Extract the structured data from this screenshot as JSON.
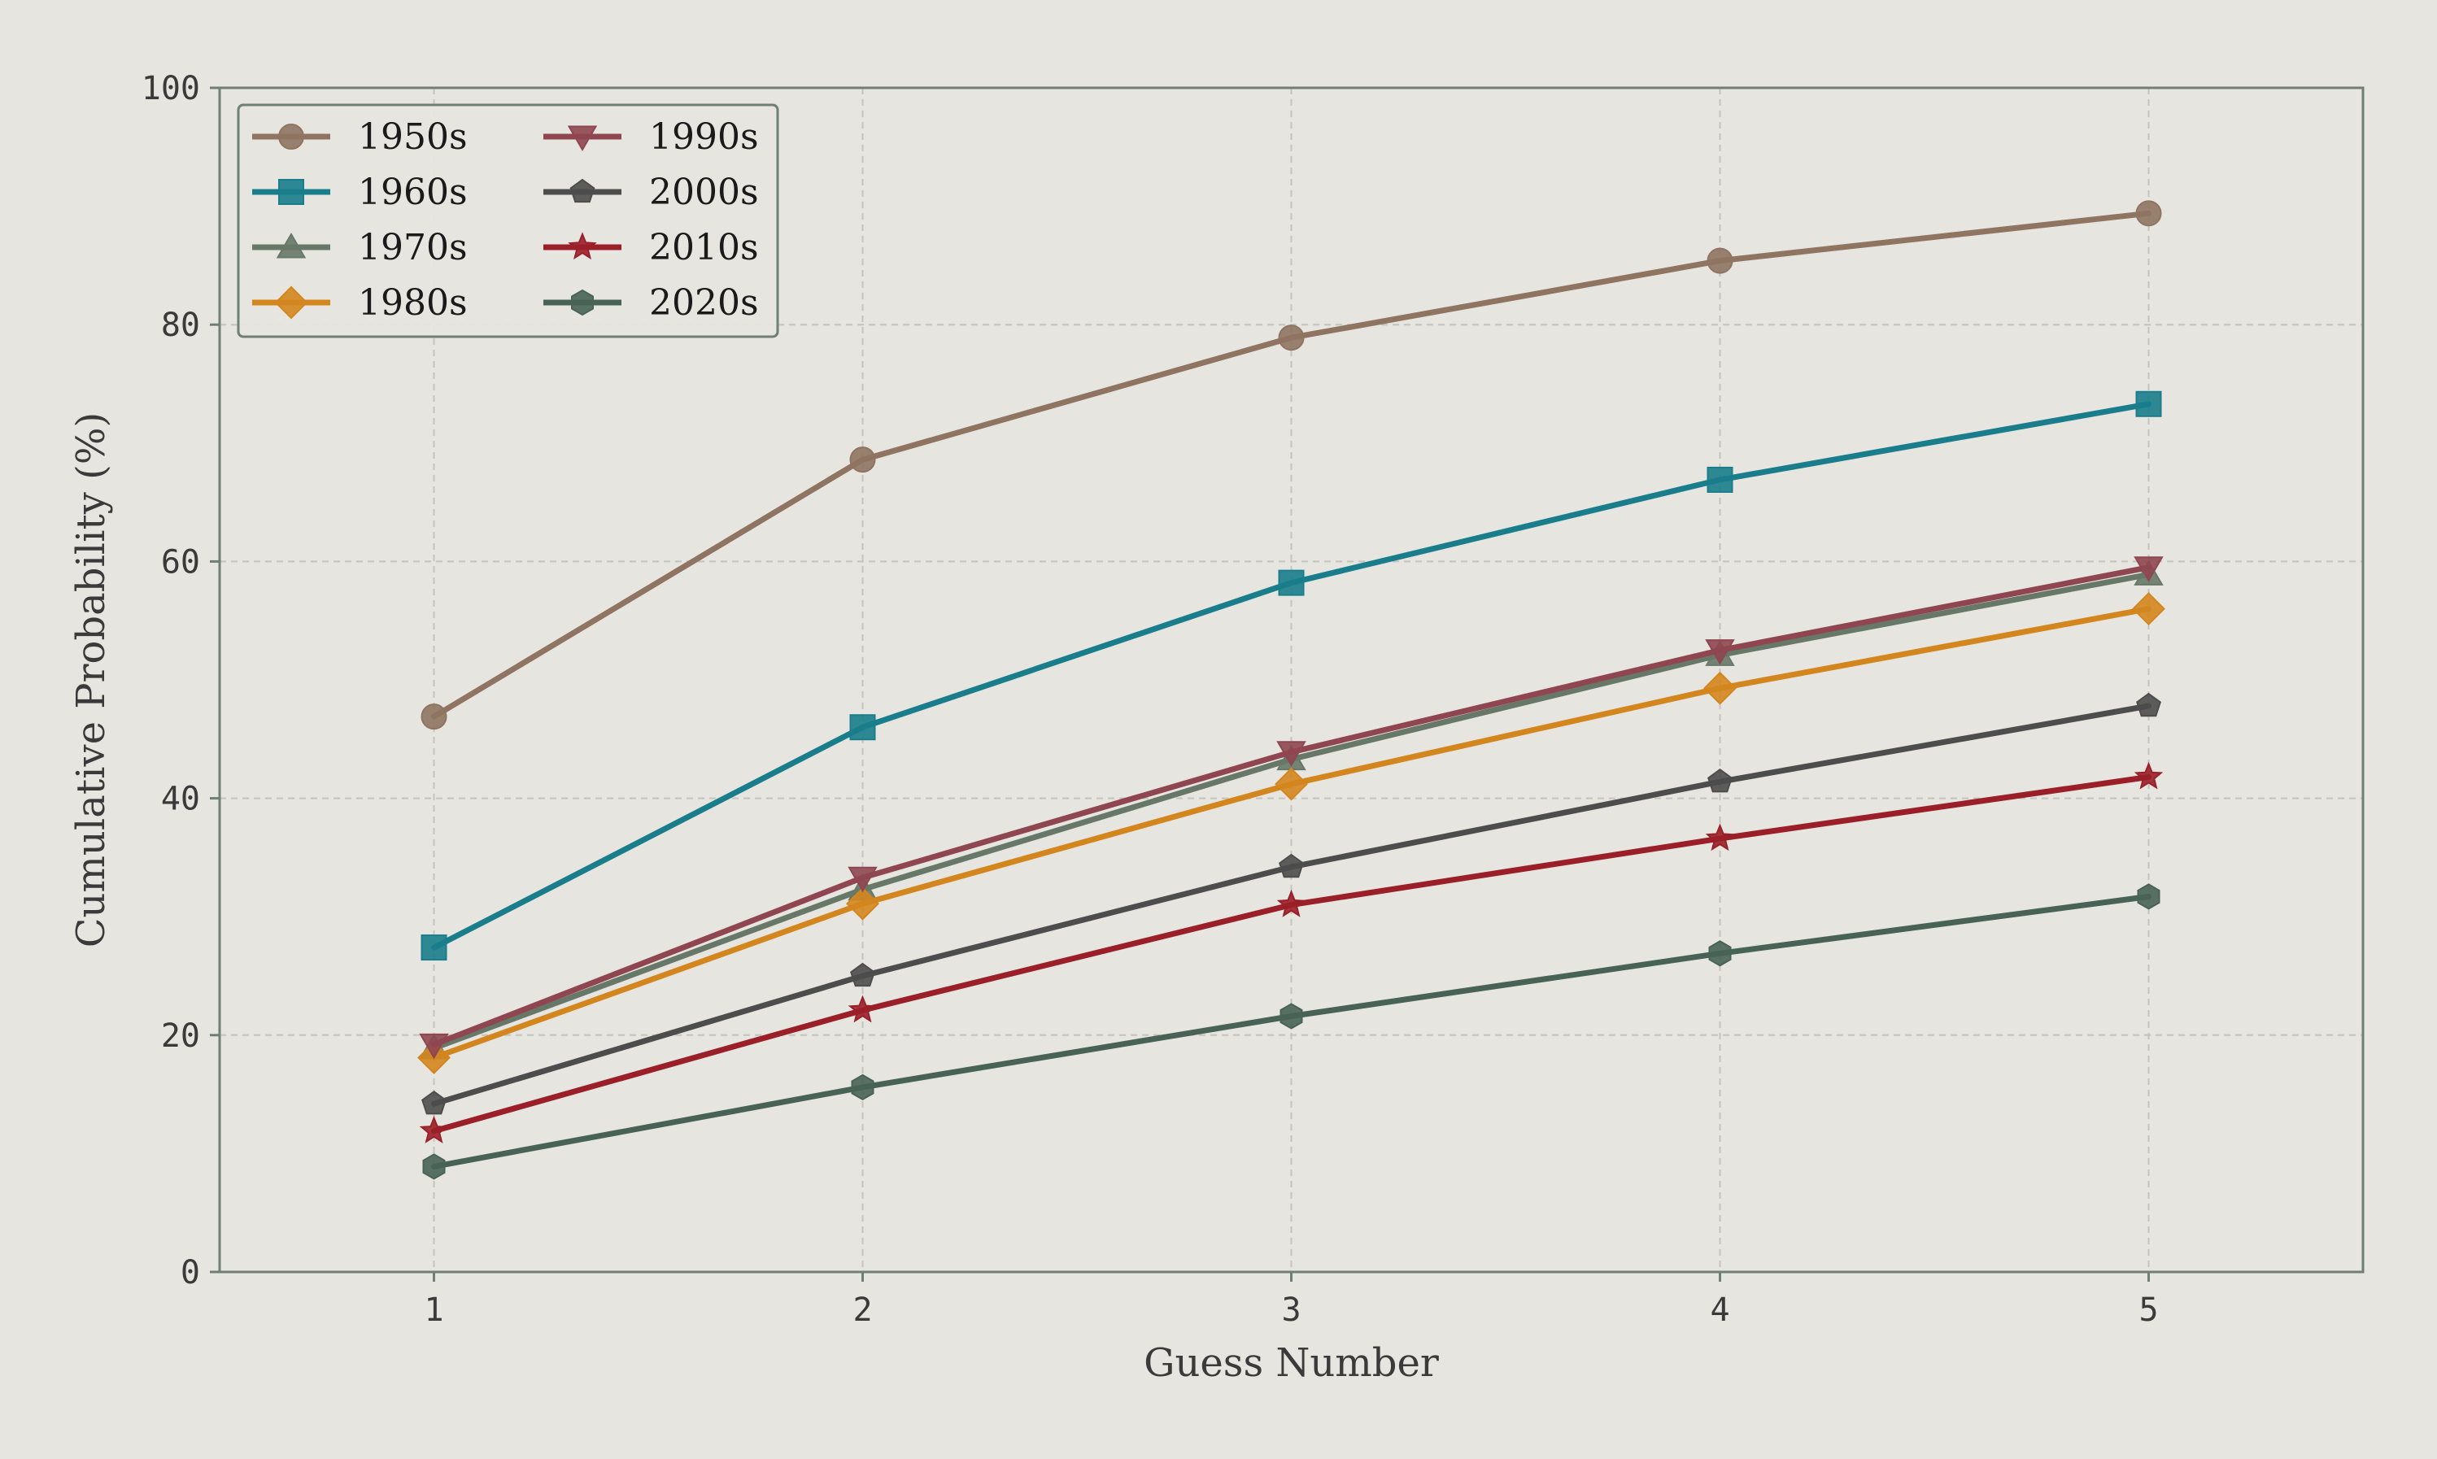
{
  "chart_data": {
    "type": "line",
    "title": "",
    "xlabel": "Guess Number",
    "ylabel": "Cumulative Probability (%)",
    "x": [
      1,
      2,
      3,
      4,
      5
    ],
    "xlim": [
      0.5,
      5.5
    ],
    "ylim": [
      0,
      100
    ],
    "xticks": [
      "1",
      "2",
      "3",
      "4",
      "5"
    ],
    "yticks": [
      "0",
      "20",
      "40",
      "60",
      "80",
      "100"
    ],
    "grid": true,
    "legend_position": "top-left",
    "series": [
      {
        "name": "1950s",
        "color": "#8f7462",
        "marker": "circle",
        "values": [
          46.9,
          68.6,
          78.9,
          85.4,
          89.4
        ]
      },
      {
        "name": "1960s",
        "color": "#1a7d8c",
        "marker": "square",
        "values": [
          27.4,
          46.0,
          58.2,
          66.9,
          73.3
        ]
      },
      {
        "name": "1970s",
        "color": "#687868",
        "marker": "triangle-up",
        "values": [
          18.9,
          32.3,
          43.3,
          52.1,
          58.9
        ]
      },
      {
        "name": "1980s",
        "color": "#d4861e",
        "marker": "diamond",
        "values": [
          18.1,
          31.1,
          41.2,
          49.3,
          56.0
        ]
      },
      {
        "name": "1990s",
        "color": "#8f4650",
        "marker": "triangle-down",
        "values": [
          19.2,
          33.3,
          43.9,
          52.5,
          59.5
        ]
      },
      {
        "name": "2000s",
        "color": "#4d4d4d",
        "marker": "pentagon",
        "values": [
          14.2,
          25.0,
          34.2,
          41.4,
          47.8
        ]
      },
      {
        "name": "2010s",
        "color": "#9a1f28",
        "marker": "star",
        "values": [
          11.9,
          22.1,
          31.0,
          36.6,
          41.8
        ]
      },
      {
        "name": "2020s",
        "color": "#486356",
        "marker": "hexagon",
        "values": [
          8.9,
          15.6,
          21.6,
          26.9,
          31.7
        ]
      }
    ]
  }
}
